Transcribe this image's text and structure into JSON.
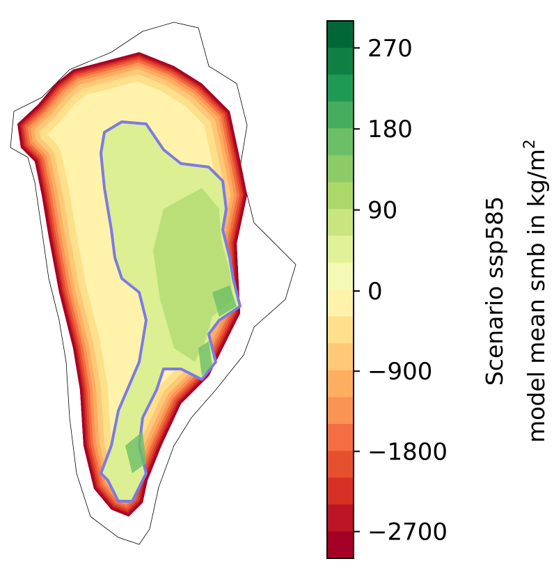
{
  "chart_data": {
    "type": "heatmap",
    "colormap": "RdYlGn (discrete, 20 levels)",
    "colorbar": {
      "label_line1": "Scenario ssp585",
      "label_line2": "model mean smb in kg/m",
      "label_superscript": "2",
      "range": [
        -3000,
        300
      ],
      "levels_negative": [
        -3000,
        -2700,
        -2400,
        -2100,
        -1800,
        -1500,
        -1200,
        -900,
        -600,
        -300,
        0
      ],
      "levels_positive": [
        0,
        30,
        60,
        90,
        120,
        150,
        180,
        210,
        240,
        270,
        300
      ],
      "ticks": [
        {
          "value": 270,
          "label": "270"
        },
        {
          "value": 180,
          "label": "180"
        },
        {
          "value": 90,
          "label": "90"
        },
        {
          "value": 0,
          "label": "0"
        },
        {
          "value": -900,
          "label": "−900"
        },
        {
          "value": -1800,
          "label": "−1800"
        },
        {
          "value": -2700,
          "label": "−2700"
        }
      ],
      "colors_top_to_bottom": [
        "#006837",
        "#0f7f44",
        "#1f9a55",
        "#47ad5e",
        "#6cbf66",
        "#8ccb65",
        "#acd86a",
        "#c8e580",
        "#e1f197",
        "#f4fab6",
        "#fff3ab",
        "#fee08b",
        "#fec878",
        "#fdae61",
        "#f99455",
        "#f46e43",
        "#e5502f",
        "#d73027",
        "#bb1526",
        "#a50026"
      ]
    },
    "contour_color": "#7b7be3",
    "coastline_color": "#000000"
  }
}
